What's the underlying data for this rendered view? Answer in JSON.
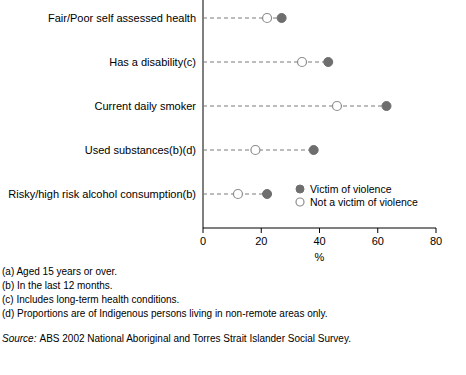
{
  "chart_data": {
    "type": "dot",
    "orientation": "horizontal",
    "categories": [
      "Fair/Poor self assessed health",
      "Has a disability(c)",
      "Current daily smoker",
      "Used substances(b)(d)",
      "Risky/high risk alcohol consumption(b)"
    ],
    "series": [
      {
        "name": "Victim of violence",
        "color": "#6e6e6e",
        "marker": "filled",
        "values": [
          27,
          43,
          63,
          38,
          22
        ]
      },
      {
        "name": "Not a victim of violence",
        "color": "#8c8c8c",
        "marker": "open",
        "values": [
          22,
          34,
          46,
          18,
          12
        ]
      }
    ],
    "xlim": [
      0,
      80
    ],
    "xticks": [
      0,
      20,
      40,
      60,
      80
    ],
    "xlabel": "%",
    "line_style": "dashed",
    "legend": "bottom-right",
    "notes": [
      "(a) Aged 15 years or over.",
      "(b) In the last 12 months.",
      "(c) Includes long-term health conditions.",
      "(d) Proportions are of Indigenous persons living in non-remote areas only."
    ],
    "source_label": "Source:",
    "source": "ABS 2002 National Aboriginal and Torres Strait Islander Social Survey."
  }
}
